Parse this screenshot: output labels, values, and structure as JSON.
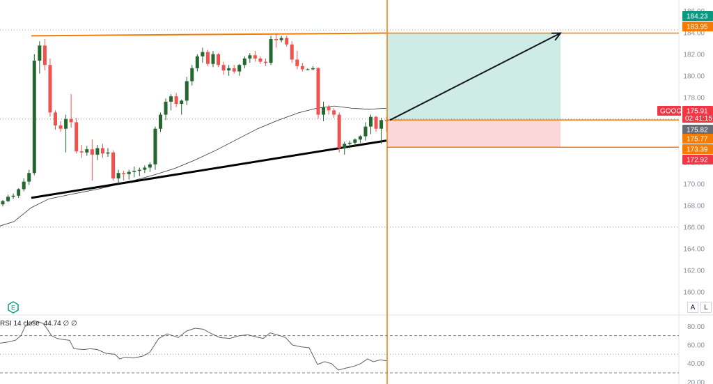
{
  "chart_data": {
    "type": "candlestick",
    "symbol": "GOOG",
    "price_axis": {
      "ticks": [
        "186.00",
        "184.00",
        "182.00",
        "180.00",
        "178.00",
        "176.00",
        "174.00",
        "172.00",
        "170.00",
        "168.00",
        "166.00",
        "164.00",
        "162.00",
        "160.00"
      ],
      "range": [
        158.5,
        186.5
      ]
    },
    "price_tags": [
      {
        "label": "184.23",
        "value": 184.23,
        "color": "#089981"
      },
      {
        "label": "183.95",
        "value": 183.95,
        "color": "#f57c00"
      },
      {
        "label": "175.91",
        "value": 175.91,
        "color": "#f23645",
        "prefix": "GOOG",
        "sub": "02:41:15"
      },
      {
        "label": "175.82",
        "value": 175.82,
        "color": "#6a6d78"
      },
      {
        "label": "175.77",
        "value": 175.77,
        "color": "#f57c00"
      },
      {
        "label": "173.39",
        "value": 173.39,
        "color": "#f57c00"
      },
      {
        "label": "172.92",
        "value": 172.92,
        "color": "#f23645"
      }
    ],
    "candles": [
      [
        168.1,
        168.5,
        167.9,
        168.4
      ],
      [
        168.4,
        169.0,
        168.3,
        168.8
      ],
      [
        168.8,
        169.1,
        168.6,
        168.9
      ],
      [
        168.9,
        169.6,
        168.7,
        169.5
      ],
      [
        169.5,
        170.5,
        169.3,
        170.2
      ],
      [
        170.2,
        171.3,
        169.9,
        171.0
      ],
      [
        171.0,
        182.0,
        170.8,
        181.4
      ],
      [
        181.4,
        183.2,
        180.2,
        182.8
      ],
      [
        182.8,
        183.4,
        180.5,
        181.0
      ],
      [
        181.0,
        181.6,
        176.2,
        176.6
      ],
      [
        176.6,
        176.8,
        175.0,
        175.4
      ],
      [
        175.4,
        175.8,
        174.8,
        175.1
      ],
      [
        175.1,
        176.4,
        172.9,
        176.0
      ],
      [
        176.0,
        178.3,
        175.2,
        175.7
      ],
      [
        175.7,
        176.1,
        172.8,
        173.0
      ],
      [
        173.0,
        173.6,
        172.4,
        172.9
      ],
      [
        172.9,
        173.5,
        172.6,
        173.2
      ],
      [
        173.2,
        174.1,
        170.3,
        172.7
      ],
      [
        172.7,
        173.6,
        172.2,
        173.3
      ],
      [
        173.3,
        173.7,
        172.4,
        172.8
      ],
      [
        172.8,
        173.3,
        172.5,
        172.9
      ],
      [
        172.9,
        173.1,
        170.3,
        170.5
      ],
      [
        170.5,
        171.3,
        170.0,
        171.0
      ],
      [
        171.0,
        171.2,
        170.3,
        170.9
      ],
      [
        170.9,
        171.3,
        170.4,
        171.1
      ],
      [
        171.1,
        171.6,
        170.6,
        171.2
      ],
      [
        171.2,
        171.5,
        170.7,
        171.3
      ],
      [
        171.3,
        171.7,
        171.0,
        171.5
      ],
      [
        171.5,
        172.0,
        171.1,
        171.8
      ],
      [
        171.8,
        175.3,
        171.3,
        175.1
      ],
      [
        175.1,
        176.6,
        174.8,
        176.4
      ],
      [
        176.4,
        177.9,
        175.9,
        177.6
      ],
      [
        177.6,
        178.3,
        176.8,
        178.1
      ],
      [
        178.1,
        178.4,
        177.1,
        177.4
      ],
      [
        177.4,
        177.8,
        176.4,
        177.7
      ],
      [
        177.7,
        179.9,
        177.3,
        179.5
      ],
      [
        179.5,
        181.0,
        179.1,
        180.7
      ],
      [
        180.7,
        182.0,
        180.4,
        181.8
      ],
      [
        181.8,
        182.6,
        181.2,
        182.2
      ],
      [
        182.2,
        182.4,
        180.9,
        181.1
      ],
      [
        181.1,
        182.3,
        180.8,
        182.0
      ],
      [
        182.0,
        182.1,
        180.8,
        181.0
      ],
      [
        181.0,
        181.3,
        180.1,
        180.5
      ],
      [
        180.5,
        181.0,
        180.0,
        180.7
      ],
      [
        180.7,
        181.0,
        180.2,
        180.4
      ],
      [
        180.4,
        181.1,
        180.0,
        181.0
      ],
      [
        181.0,
        181.8,
        180.7,
        181.6
      ],
      [
        181.6,
        182.1,
        181.2,
        181.9
      ],
      [
        181.9,
        182.3,
        181.3,
        181.6
      ],
      [
        181.6,
        181.8,
        181.1,
        181.3
      ],
      [
        181.3,
        181.6,
        180.9,
        181.2
      ],
      [
        181.2,
        183.7,
        181.0,
        183.4
      ],
      [
        183.4,
        183.9,
        182.6,
        183.3
      ],
      [
        183.3,
        183.7,
        183.1,
        183.5
      ],
      [
        183.5,
        183.7,
        182.7,
        182.9
      ],
      [
        182.9,
        183.2,
        181.2,
        181.5
      ],
      [
        181.5,
        182.3,
        180.6,
        180.9
      ],
      [
        180.9,
        181.2,
        180.4,
        180.6
      ],
      [
        180.6,
        180.7,
        180.5,
        180.6
      ],
      [
        180.6,
        180.9,
        180.5,
        180.7
      ],
      [
        180.7,
        180.8,
        176.0,
        176.4
      ],
      [
        176.4,
        177.6,
        175.8,
        177.1
      ],
      [
        177.1,
        177.3,
        176.4,
        176.8
      ],
      [
        176.8,
        177.0,
        176.1,
        176.4
      ],
      [
        176.4,
        176.6,
        172.9,
        173.3
      ],
      [
        173.3,
        173.9,
        172.7,
        173.7
      ],
      [
        173.7,
        174.0,
        173.3,
        173.8
      ],
      [
        173.8,
        174.2,
        173.4,
        174.1
      ],
      [
        174.1,
        174.5,
        173.8,
        174.4
      ],
      [
        174.4,
        175.7,
        174.0,
        175.3
      ],
      [
        175.3,
        176.4,
        174.6,
        176.2
      ],
      [
        176.2,
        176.3,
        174.8,
        175.1
      ],
      [
        175.1,
        176.1,
        173.7,
        175.9
      ],
      [
        175.9,
        176.2,
        174.8,
        175.8
      ]
    ],
    "ma": [
      [
        0,
        166.1
      ],
      [
        20,
        166.5
      ],
      [
        45,
        167.8
      ],
      [
        70,
        168.6
      ],
      [
        100,
        169.0
      ],
      [
        140,
        169.5
      ],
      [
        180,
        170.1
      ],
      [
        220,
        170.8
      ],
      [
        250,
        171.4
      ],
      [
        280,
        172.2
      ],
      [
        310,
        173.1
      ],
      [
        340,
        174.1
      ],
      [
        370,
        175.1
      ],
      [
        400,
        175.9
      ],
      [
        430,
        176.6
      ],
      [
        455,
        177.0
      ],
      [
        480,
        177.2
      ],
      [
        505,
        177.0
      ],
      [
        530,
        176.9
      ],
      [
        555,
        177.0
      ]
    ],
    "trendline_support": [
      [
        45,
        168.7
      ],
      [
        555,
        174.0
      ]
    ],
    "trendline_resistance": [
      [
        45,
        183.7
      ],
      [
        555,
        183.95
      ]
    ],
    "position": {
      "entry": 175.91,
      "target": 183.95,
      "stop": 173.39
    },
    "projection_arrow": {
      "from": [
        560,
        175.9
      ],
      "to": [
        805,
        183.95
      ]
    },
    "reference_lines": [
      184.23,
      176.0,
      166.0
    ],
    "rsi": {
      "title": "RSI 14 close",
      "value": "44.74",
      "extras": [
        "∅",
        "∅"
      ],
      "ticks": [
        "80.00",
        "60.00",
        "40.00",
        "20.00"
      ],
      "band": [
        30,
        70
      ],
      "mid": 50,
      "values": [
        [
          0,
          62
        ],
        [
          10,
          63
        ],
        [
          22,
          65
        ],
        [
          30,
          70
        ],
        [
          36,
          80
        ],
        [
          42,
          82
        ],
        [
          48,
          86
        ],
        [
          55,
          85
        ],
        [
          62,
          83
        ],
        [
          68,
          77
        ],
        [
          74,
          70
        ],
        [
          82,
          67
        ],
        [
          90,
          66
        ],
        [
          100,
          65
        ],
        [
          106,
          56
        ],
        [
          120,
          55
        ],
        [
          130,
          56
        ],
        [
          140,
          55
        ],
        [
          152,
          51
        ],
        [
          165,
          50
        ],
        [
          172,
          45
        ],
        [
          180,
          47
        ],
        [
          192,
          46
        ],
        [
          205,
          48
        ],
        [
          215,
          52
        ],
        [
          228,
          67
        ],
        [
          240,
          72
        ],
        [
          248,
          70
        ],
        [
          256,
          68
        ],
        [
          268,
          75
        ],
        [
          280,
          78
        ],
        [
          292,
          77
        ],
        [
          304,
          72
        ],
        [
          316,
          68
        ],
        [
          330,
          67
        ],
        [
          344,
          70
        ],
        [
          356,
          71
        ],
        [
          366,
          69
        ],
        [
          378,
          67
        ],
        [
          388,
          73
        ],
        [
          398,
          71
        ],
        [
          410,
          68
        ],
        [
          420,
          60
        ],
        [
          432,
          58
        ],
        [
          444,
          57
        ],
        [
          456,
          39
        ],
        [
          466,
          42
        ],
        [
          476,
          40
        ],
        [
          486,
          33
        ],
        [
          496,
          35
        ],
        [
          508,
          37
        ],
        [
          518,
          40
        ],
        [
          528,
          45
        ],
        [
          536,
          42
        ],
        [
          546,
          44
        ],
        [
          555,
          43
        ]
      ]
    }
  },
  "ui": {
    "scale_auto": "A",
    "scale_log": "L",
    "earnings_badge": "E"
  }
}
